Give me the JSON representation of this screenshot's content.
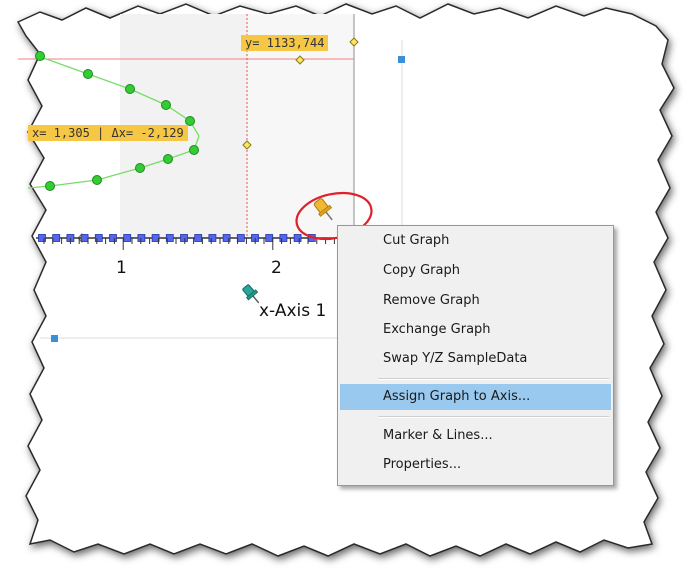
{
  "plot": {
    "y_marker_label": "y= 1133,744",
    "x_marker_label": "x= 1,305 | Δx= -2,129",
    "x_tick_labels": [
      "1",
      "2"
    ],
    "x_axis_title": "x-Axis 1"
  },
  "context_menu": {
    "items": [
      {
        "label": "Cut Graph"
      },
      {
        "label": "Copy Graph"
      },
      {
        "label": "Remove Graph"
      },
      {
        "label": "Exchange Graph"
      },
      {
        "label": "Swap Y/Z SampleData"
      },
      {
        "label": "Assign Graph to Axis...",
        "highlighted": true
      },
      {
        "label": "Marker & Lines..."
      },
      {
        "label": "Properties..."
      }
    ]
  },
  "colors": {
    "marker_label_bg": "#f6c744",
    "menu_highlight": "#99c9ef",
    "curve_green": "#22bb22",
    "square_marker_blue": "#5566ee",
    "callout_circle": "#e0202a"
  },
  "icons": [
    "pin-icon-yellow",
    "pin-icon-teal",
    "handle-square-icon"
  ]
}
